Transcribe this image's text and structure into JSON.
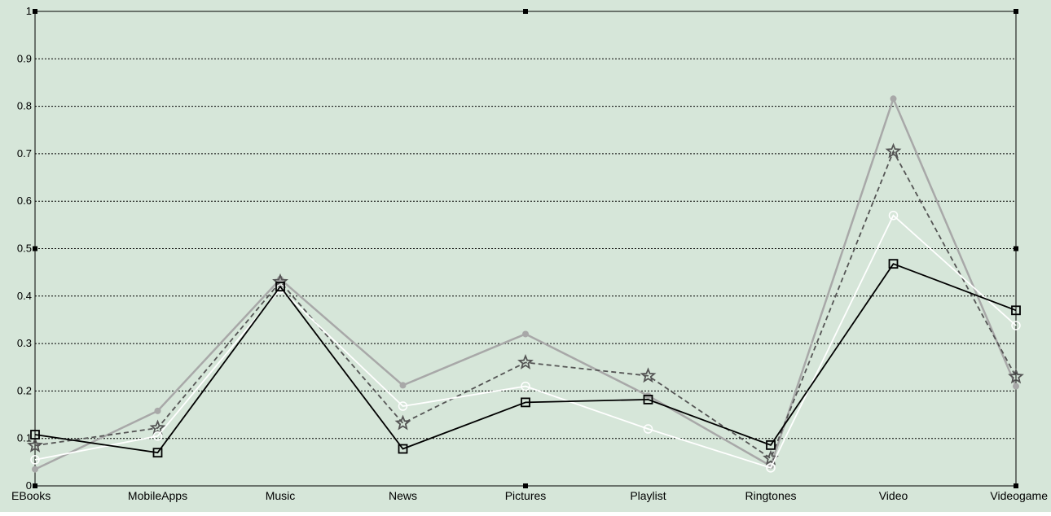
{
  "chart_data": {
    "type": "line",
    "categories": [
      "EBooks",
      "MobileApps",
      "Music",
      "News",
      "Pictures",
      "Playlist",
      "Ringtones",
      "Video",
      "Videogame"
    ],
    "ylim": [
      0,
      1
    ],
    "yticks": [
      "0",
      "0.1",
      "0.2",
      "0.3",
      "0.4",
      "0.5",
      "0.6",
      "0.7",
      "0.8",
      "0.9",
      "1"
    ],
    "grid": "horizontal dotted",
    "title": "",
    "xlabel": "",
    "ylabel": "",
    "background_color": "#d6e6d9",
    "series": [
      {
        "values": [
          0.035,
          0.158,
          0.436,
          0.212,
          0.32,
          0.19,
          0.042,
          0.816,
          0.21
        ],
        "color": "#a8a8a8",
        "marker": "dot",
        "line": "solid"
      },
      {
        "values": [
          0.085,
          0.122,
          0.43,
          0.132,
          0.26,
          0.232,
          0.058,
          0.705,
          0.23
        ],
        "color": "#555555",
        "marker": "star",
        "line": "dashed"
      },
      {
        "values": [
          0.055,
          0.105,
          0.415,
          0.168,
          0.21,
          0.12,
          0.038,
          0.57,
          0.338
        ],
        "color": "#ffffff",
        "marker": "circle",
        "line": "solid"
      },
      {
        "values": [
          0.108,
          0.07,
          0.42,
          0.078,
          0.176,
          0.182,
          0.086,
          0.468,
          0.37
        ],
        "color": "#000000",
        "marker": "square",
        "line": "solid"
      }
    ]
  }
}
